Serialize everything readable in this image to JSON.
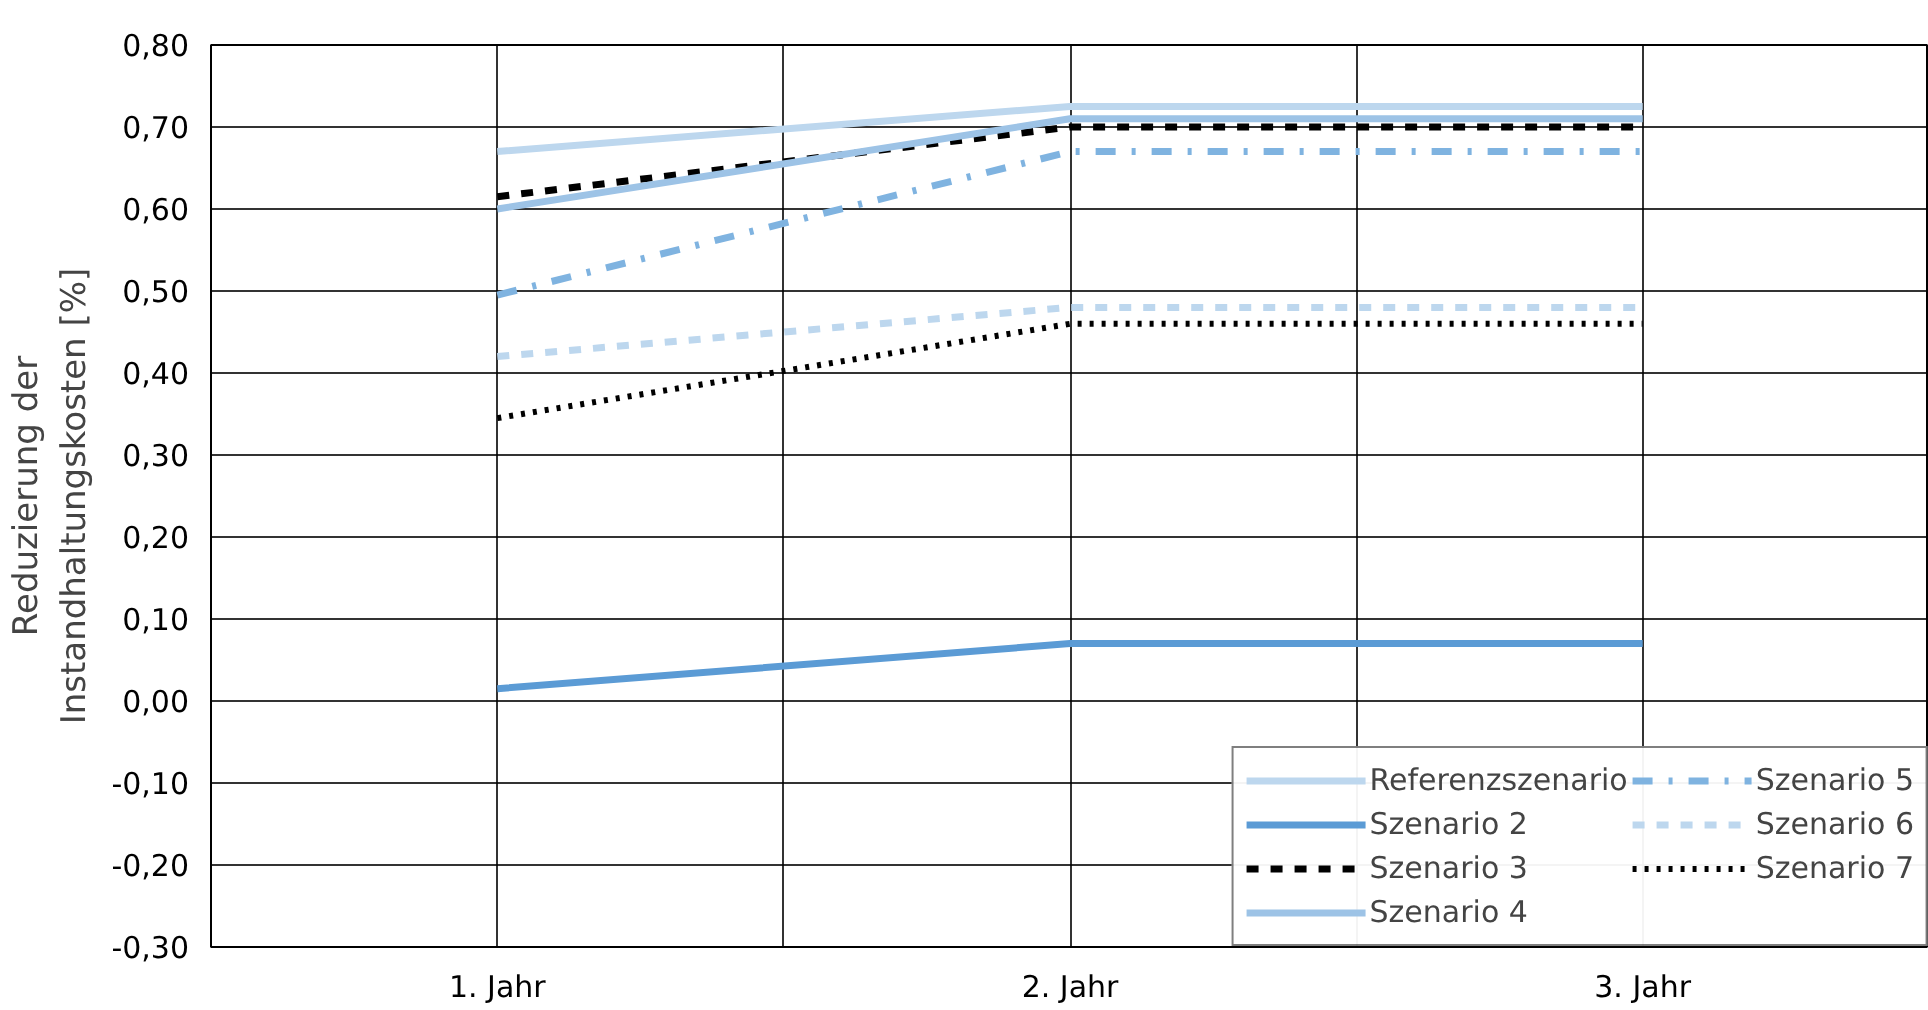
{
  "chart_data": {
    "type": "line",
    "ylabel": "Reduzierung der\nInstandhaltungskosten [%]",
    "categories": [
      "1. Jahr",
      "2. Jahr",
      "3. Jahr"
    ],
    "ylim": [
      -0.3,
      0.8
    ],
    "yticks": [
      {
        "value": -0.3,
        "label": "-0,30"
      },
      {
        "value": -0.2,
        "label": "-0,20"
      },
      {
        "value": -0.1,
        "label": "-0,10"
      },
      {
        "value": 0,
        "label": "0,00"
      },
      {
        "value": 0.1,
        "label": "0,10"
      },
      {
        "value": 0.2,
        "label": "0,20"
      },
      {
        "value": 0.3,
        "label": "0,30"
      },
      {
        "value": 0.4,
        "label": "0,40"
      },
      {
        "value": 0.5,
        "label": "0,50"
      },
      {
        "value": 0.6,
        "label": "0,60"
      },
      {
        "value": 0.7,
        "label": "0,70"
      },
      {
        "value": 0.8,
        "label": "0,80"
      }
    ],
    "grid": true,
    "legend": "bottom right",
    "series": [
      {
        "name": "Referenzszenario",
        "color": "#bdd7ee",
        "line_style": "solid",
        "values": [
          0.67,
          0.725,
          0.725
        ]
      },
      {
        "name": "Szenario 2",
        "color": "#5b9bd5",
        "line_style": "solid",
        "values": [
          0.015,
          0.07,
          0.07
        ]
      },
      {
        "name": "Szenario 3",
        "color": "#000000",
        "line_style": "dashed",
        "values": [
          0.615,
          0.7,
          0.7
        ]
      },
      {
        "name": "Szenario 4",
        "color": "#9dc3e6",
        "line_style": "solid",
        "values": [
          0.6,
          0.71,
          0.71
        ]
      },
      {
        "name": "Szenario 5",
        "color": "#7fb3e0",
        "line_style": "dashdot",
        "values": [
          0.495,
          0.67,
          0.67
        ]
      },
      {
        "name": "Szenario 6",
        "color": "#bdd7ee",
        "line_style": "dashed",
        "values": [
          0.42,
          0.48,
          0.48
        ]
      },
      {
        "name": "Szenario 7",
        "color": "#000000",
        "line_style": "dotted",
        "values": [
          0.345,
          0.46,
          0.46
        ]
      }
    ]
  }
}
